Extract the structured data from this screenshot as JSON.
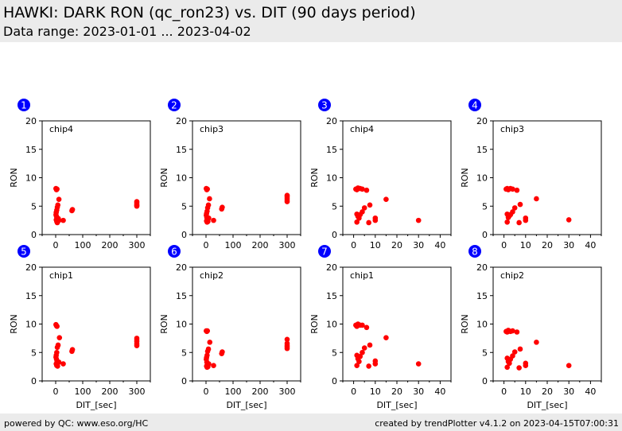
{
  "header": {
    "title": "HAWKI: DARK RON (qc_ron23) vs. DIT (90 days period)",
    "subtitle": "Data range: 2023-01-01 ... 2023-04-02"
  },
  "footer": {
    "left": "powered by QC: www.eso.org/HC",
    "right": "created by trendPlotter v4.1.2 on 2023-04-15T07:00:31"
  },
  "colors": {
    "marker": "#ff0000",
    "badge": "#0000ff",
    "header_bg": "#ebebeb"
  },
  "chart_data": [
    {
      "type": "scatter",
      "panel": "1",
      "label": "chip4",
      "xlabel": "",
      "ylabel": "RON",
      "xlim": [
        -50,
        350
      ],
      "ylim": [
        0,
        20
      ],
      "xticks": [
        0,
        100,
        200,
        300
      ],
      "yticks": [
        0,
        5,
        10,
        15,
        20
      ],
      "points": [
        [
          1,
          8.1
        ],
        [
          3,
          7.9
        ],
        [
          5,
          8.0
        ],
        [
          12,
          6.2
        ],
        [
          8,
          5.2
        ],
        [
          6,
          4.8
        ],
        [
          4,
          4.3
        ],
        [
          2,
          3.9
        ],
        [
          1,
          3.5
        ],
        [
          3,
          3.2
        ],
        [
          5,
          2.9
        ],
        [
          2,
          2.6
        ],
        [
          4,
          2.3
        ],
        [
          6,
          2.1
        ],
        [
          10,
          2.8
        ],
        [
          12,
          2.5
        ],
        [
          28,
          2.5
        ],
        [
          60,
          4.2
        ],
        [
          62,
          4.4
        ],
        [
          300,
          5.0
        ],
        [
          300,
          5.3
        ],
        [
          300,
          5.6
        ],
        [
          300,
          5.8
        ],
        [
          300,
          5.1
        ]
      ]
    },
    {
      "type": "scatter",
      "panel": "2",
      "label": "chip3",
      "xlabel": "",
      "ylabel": "RON",
      "xlim": [
        -50,
        350
      ],
      "ylim": [
        0,
        20
      ],
      "xticks": [
        0,
        100,
        200,
        300
      ],
      "yticks": [
        0,
        5,
        10,
        15,
        20
      ],
      "points": [
        [
          1,
          8.1
        ],
        [
          3,
          7.9
        ],
        [
          5,
          8.0
        ],
        [
          13,
          6.3
        ],
        [
          9,
          5.2
        ],
        [
          6,
          4.7
        ],
        [
          4,
          4.1
        ],
        [
          2,
          3.7
        ],
        [
          1,
          3.4
        ],
        [
          3,
          3.0
        ],
        [
          5,
          2.7
        ],
        [
          2,
          2.4
        ],
        [
          4,
          2.2
        ],
        [
          7,
          2.3
        ],
        [
          10,
          2.9
        ],
        [
          28,
          2.5
        ],
        [
          58,
          4.5
        ],
        [
          60,
          4.8
        ],
        [
          300,
          5.8
        ],
        [
          300,
          6.1
        ],
        [
          300,
          6.4
        ],
        [
          300,
          6.7
        ],
        [
          300,
          6.9
        ]
      ]
    },
    {
      "type": "scatter",
      "panel": "3",
      "label": "chip4",
      "xlabel": "",
      "ylabel": "RON",
      "xlim": [
        -5,
        45
      ],
      "ylim": [
        0,
        20
      ],
      "xticks": [
        0,
        10,
        20,
        30,
        40
      ],
      "yticks": [
        0,
        5,
        10,
        15,
        20
      ],
      "points": [
        [
          1,
          8.0
        ],
        [
          1.5,
          7.9
        ],
        [
          2,
          8.2
        ],
        [
          3,
          8.1
        ],
        [
          4,
          8.0
        ],
        [
          6,
          7.8
        ],
        [
          15,
          6.2
        ],
        [
          7.5,
          5.2
        ],
        [
          5,
          4.7
        ],
        [
          4,
          4.0
        ],
        [
          3,
          3.5
        ],
        [
          1.5,
          3.6
        ],
        [
          2,
          3.2
        ],
        [
          2.5,
          2.9
        ],
        [
          1.5,
          2.2
        ],
        [
          7,
          2.1
        ],
        [
          10,
          2.9
        ],
        [
          10,
          2.5
        ],
        [
          30,
          2.5
        ]
      ]
    },
    {
      "type": "scatter",
      "panel": "4",
      "label": "chip3",
      "xlabel": "",
      "ylabel": "RON",
      "xlim": [
        -5,
        45
      ],
      "ylim": [
        0,
        20
      ],
      "xticks": [
        0,
        10,
        20,
        30,
        40
      ],
      "yticks": [
        0,
        5,
        10,
        15,
        20
      ],
      "points": [
        [
          1,
          8.0
        ],
        [
          1.5,
          8.1
        ],
        [
          2,
          7.9
        ],
        [
          3,
          8.1
        ],
        [
          4,
          8.0
        ],
        [
          6,
          7.8
        ],
        [
          15,
          6.3
        ],
        [
          7.5,
          5.3
        ],
        [
          5,
          4.7
        ],
        [
          4,
          4.0
        ],
        [
          3,
          3.5
        ],
        [
          1.5,
          3.6
        ],
        [
          2,
          3.0
        ],
        [
          2.5,
          3.3
        ],
        [
          1.5,
          2.2
        ],
        [
          7,
          2.1
        ],
        [
          10,
          2.9
        ],
        [
          10,
          2.5
        ],
        [
          30,
          2.6
        ]
      ]
    },
    {
      "type": "scatter",
      "panel": "5",
      "label": "chip1",
      "xlabel": "DIT_[sec]",
      "ylabel": "RON",
      "xlim": [
        -50,
        350
      ],
      "ylim": [
        0,
        20
      ],
      "xticks": [
        0,
        100,
        200,
        300
      ],
      "yticks": [
        0,
        5,
        10,
        15,
        20
      ],
      "points": [
        [
          1,
          9.9
        ],
        [
          3,
          9.7
        ],
        [
          5,
          9.6
        ],
        [
          14,
          7.6
        ],
        [
          9,
          6.3
        ],
        [
          6,
          5.9
        ],
        [
          4,
          5.0
        ],
        [
          2,
          4.5
        ],
        [
          1,
          4.2
        ],
        [
          3,
          3.8
        ],
        [
          5,
          3.4
        ],
        [
          2,
          3.0
        ],
        [
          4,
          2.7
        ],
        [
          7,
          2.6
        ],
        [
          12,
          3.3
        ],
        [
          28,
          3.0
        ],
        [
          60,
          5.2
        ],
        [
          62,
          5.5
        ],
        [
          300,
          6.2
        ],
        [
          300,
          6.5
        ],
        [
          300,
          6.9
        ],
        [
          300,
          7.2
        ],
        [
          300,
          7.5
        ]
      ]
    },
    {
      "type": "scatter",
      "panel": "6",
      "label": "chip2",
      "xlabel": "DIT_[sec]",
      "ylabel": "RON",
      "xlim": [
        -50,
        350
      ],
      "ylim": [
        0,
        20
      ],
      "xticks": [
        0,
        100,
        200,
        300
      ],
      "yticks": [
        0,
        5,
        10,
        15,
        20
      ],
      "points": [
        [
          1,
          8.8
        ],
        [
          3,
          8.7
        ],
        [
          5,
          8.8
        ],
        [
          14,
          6.8
        ],
        [
          9,
          5.6
        ],
        [
          6,
          5.2
        ],
        [
          4,
          4.5
        ],
        [
          2,
          4.1
        ],
        [
          1,
          3.8
        ],
        [
          3,
          3.3
        ],
        [
          5,
          2.9
        ],
        [
          2,
          2.6
        ],
        [
          4,
          2.4
        ],
        [
          7,
          2.5
        ],
        [
          10,
          3.0
        ],
        [
          28,
          2.7
        ],
        [
          58,
          4.8
        ],
        [
          60,
          5.1
        ],
        [
          300,
          5.7
        ],
        [
          300,
          6.0
        ],
        [
          300,
          6.3
        ],
        [
          300,
          6.6
        ],
        [
          300,
          7.3
        ]
      ]
    },
    {
      "type": "scatter",
      "panel": "7",
      "label": "chip1",
      "xlabel": "DIT_[sec]",
      "ylabel": "RON",
      "xlim": [
        -5,
        45
      ],
      "ylim": [
        0,
        20
      ],
      "xticks": [
        0,
        10,
        20,
        30,
        40
      ],
      "yticks": [
        0,
        5,
        10,
        15,
        20
      ],
      "points": [
        [
          1,
          9.8
        ],
        [
          1.5,
          9.6
        ],
        [
          2,
          10.0
        ],
        [
          3,
          9.8
        ],
        [
          4,
          9.8
        ],
        [
          6,
          9.4
        ],
        [
          15,
          7.6
        ],
        [
          7.5,
          6.3
        ],
        [
          5,
          5.8
        ],
        [
          4,
          5.0
        ],
        [
          3,
          4.3
        ],
        [
          1.5,
          4.5
        ],
        [
          2,
          3.9
        ],
        [
          2.5,
          3.4
        ],
        [
          1.5,
          2.7
        ],
        [
          7,
          2.6
        ],
        [
          10,
          3.5
        ],
        [
          10,
          3.0
        ],
        [
          30,
          3.0
        ]
      ]
    },
    {
      "type": "scatter",
      "panel": "8",
      "label": "chip2",
      "xlabel": "DIT_[sec]",
      "ylabel": "RON",
      "xlim": [
        -5,
        45
      ],
      "ylim": [
        0,
        20
      ],
      "xticks": [
        0,
        10,
        20,
        30,
        40
      ],
      "yticks": [
        0,
        5,
        10,
        15,
        20
      ],
      "points": [
        [
          1,
          8.7
        ],
        [
          1.5,
          8.6
        ],
        [
          2,
          8.9
        ],
        [
          3,
          8.7
        ],
        [
          4,
          8.8
        ],
        [
          6,
          8.6
        ],
        [
          15,
          6.8
        ],
        [
          7.5,
          5.6
        ],
        [
          5,
          5.1
        ],
        [
          4,
          4.4
        ],
        [
          3,
          3.8
        ],
        [
          1.5,
          4.0
        ],
        [
          2,
          3.4
        ],
        [
          2.5,
          3.1
        ],
        [
          1.5,
          2.4
        ],
        [
          7,
          2.3
        ],
        [
          10,
          3.1
        ],
        [
          10,
          2.7
        ],
        [
          30,
          2.7
        ]
      ]
    }
  ]
}
